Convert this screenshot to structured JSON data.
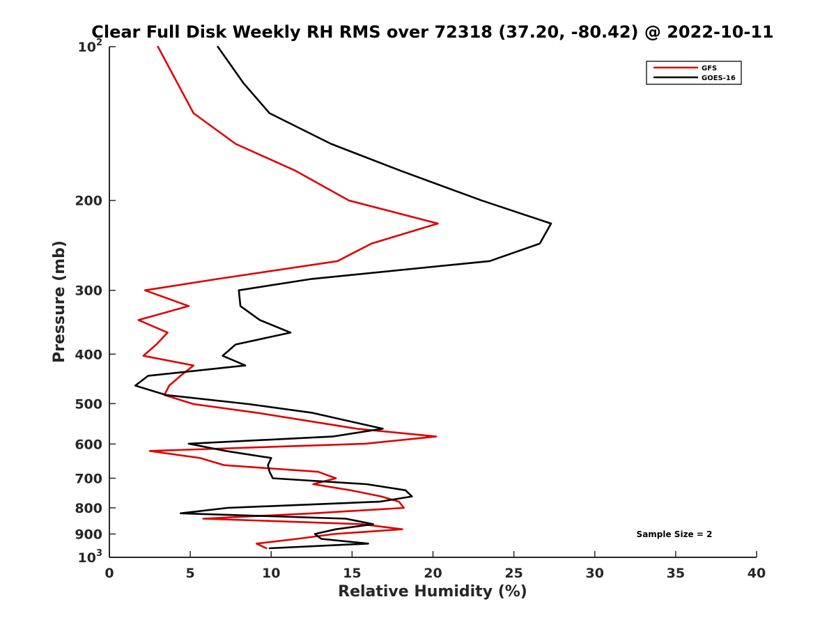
{
  "chart_data": {
    "type": "line",
    "title": "Clear Full Disk Weekly RH RMS over 72318 (37.20, -80.42) @ 2022-10-11",
    "xlabel": "Relative Humidity (%)",
    "ylabel": "Pressure (mb)",
    "xlim": [
      0,
      40
    ],
    "ylim": [
      100,
      1000
    ],
    "yscale": "log",
    "y_reversed": true,
    "xticks": [
      "0",
      "5",
      "10",
      "15",
      "20",
      "25",
      "30",
      "35",
      "40"
    ],
    "yticks": [
      {
        "value": 100,
        "base": "10",
        "exp": "2"
      },
      {
        "value": 200,
        "label": "200"
      },
      {
        "value": 300,
        "label": "300"
      },
      {
        "value": 400,
        "label": "400"
      },
      {
        "value": 500,
        "label": "500"
      },
      {
        "value": 600,
        "label": "600"
      },
      {
        "value": 700,
        "label": "700"
      },
      {
        "value": 800,
        "label": "800"
      },
      {
        "value": 900,
        "label": "900"
      },
      {
        "value": 1000,
        "base": "10",
        "exp": "3"
      }
    ],
    "grid": false,
    "legend_position": "top-right",
    "annotation": "Sample Size = 2",
    "series": [
      {
        "name": "GFS",
        "color": "#e00000",
        "points": [
          [
            3.0,
            100
          ],
          [
            5.2,
            135
          ],
          [
            7.8,
            155
          ],
          [
            11.5,
            175
          ],
          [
            14.8,
            200
          ],
          [
            20.3,
            222
          ],
          [
            16.2,
            243
          ],
          [
            14.1,
            263
          ],
          [
            6.7,
            285
          ],
          [
            2.2,
            300
          ],
          [
            4.9,
            322
          ],
          [
            1.8,
            343
          ],
          [
            3.6,
            363
          ],
          [
            2.9,
            383
          ],
          [
            2.1,
            403
          ],
          [
            5.2,
            421
          ],
          [
            4.4,
            441
          ],
          [
            3.7,
            461
          ],
          [
            3.4,
            481
          ],
          [
            5.2,
            501
          ],
          [
            9.1,
            521
          ],
          [
            15.3,
            560
          ],
          [
            20.2,
            580
          ],
          [
            15.8,
            599
          ],
          [
            2.5,
            619
          ],
          [
            5.6,
            639
          ],
          [
            7.1,
            660
          ],
          [
            12.9,
            680
          ],
          [
            14.0,
            700
          ],
          [
            12.6,
            719
          ],
          [
            14.9,
            739
          ],
          [
            16.8,
            760
          ],
          [
            17.9,
            778
          ],
          [
            18.2,
            800
          ],
          [
            12.6,
            820
          ],
          [
            5.8,
            840
          ],
          [
            15.6,
            861
          ],
          [
            18.1,
            881
          ],
          [
            13.9,
            900
          ],
          [
            11.6,
            920
          ],
          [
            9.1,
            940
          ],
          [
            9.7,
            960
          ]
        ]
      },
      {
        "name": "GOES-16",
        "color": "#000000",
        "points": [
          [
            6.7,
            100
          ],
          [
            8.3,
            118
          ],
          [
            9.9,
            135
          ],
          [
            13.7,
            155
          ],
          [
            18.0,
            175
          ],
          [
            23.0,
            200
          ],
          [
            27.3,
            222
          ],
          [
            26.6,
            243
          ],
          [
            23.5,
            263
          ],
          [
            12.5,
            285
          ],
          [
            8.0,
            300
          ],
          [
            8.1,
            322
          ],
          [
            9.3,
            343
          ],
          [
            11.2,
            363
          ],
          [
            7.8,
            383
          ],
          [
            7.0,
            403
          ],
          [
            8.4,
            421
          ],
          [
            2.4,
            441
          ],
          [
            1.6,
            461
          ],
          [
            3.5,
            481
          ],
          [
            8.6,
            501
          ],
          [
            12.5,
            521
          ],
          [
            16.9,
            560
          ],
          [
            13.8,
            580
          ],
          [
            4.9,
            599
          ],
          [
            7.2,
            619
          ],
          [
            10.0,
            639
          ],
          [
            9.8,
            660
          ],
          [
            9.9,
            680
          ],
          [
            10.1,
            700
          ],
          [
            15.9,
            719
          ],
          [
            18.3,
            739
          ],
          [
            18.7,
            760
          ],
          [
            16.7,
            778
          ],
          [
            7.3,
            800
          ],
          [
            4.4,
            820
          ],
          [
            14.6,
            840
          ],
          [
            16.3,
            861
          ],
          [
            14.0,
            881
          ],
          [
            12.7,
            900
          ],
          [
            13.1,
            920
          ],
          [
            16.0,
            940
          ],
          [
            9.9,
            960
          ]
        ]
      }
    ]
  }
}
